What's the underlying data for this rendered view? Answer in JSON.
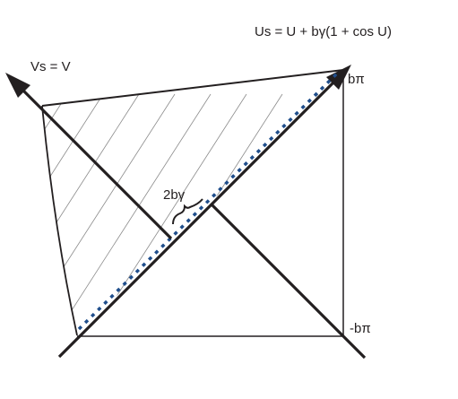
{
  "labels": {
    "us_axis": "Us = U + bγ(1 + cos U)",
    "vs_axis": "Vs = V",
    "top_bound": "bπ",
    "bottom_bound": "-bπ",
    "gap": "2bγ"
  },
  "colors": {
    "ink": "#231f20",
    "dash": "#1f4e8c",
    "hatch": "#8a8a8a"
  }
}
